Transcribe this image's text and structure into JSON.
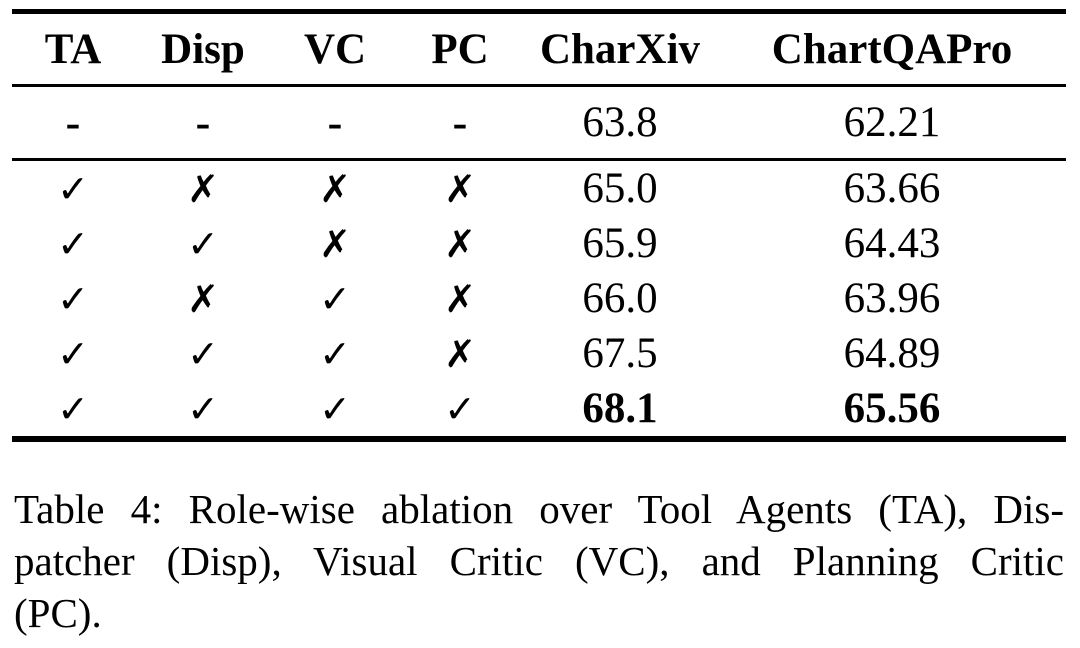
{
  "page": {
    "background_color": "#ffffff",
    "text_color": "#000000"
  },
  "table": {
    "columns": [
      {
        "label": "TA"
      },
      {
        "label": "Disp"
      },
      {
        "label": "VC"
      },
      {
        "label": "PC"
      },
      {
        "label": "CharXiv"
      },
      {
        "label": "ChartQAPro"
      }
    ],
    "glyphs": {
      "check": "✓",
      "cross": "✗",
      "none": "-"
    },
    "rows": [
      {
        "section": "baseline",
        "marks": [
          "none",
          "none",
          "none",
          "none"
        ],
        "scores": [
          "63.8",
          "62.21"
        ],
        "bold": false
      },
      {
        "section": "ablation",
        "marks": [
          "check",
          "cross",
          "cross",
          "cross"
        ],
        "scores": [
          "65.0",
          "63.66"
        ],
        "bold": false
      },
      {
        "section": "ablation",
        "marks": [
          "check",
          "check",
          "cross",
          "cross"
        ],
        "scores": [
          "65.9",
          "64.43"
        ],
        "bold": false
      },
      {
        "section": "ablation",
        "marks": [
          "check",
          "cross",
          "check",
          "cross"
        ],
        "scores": [
          "66.0",
          "63.96"
        ],
        "bold": false
      },
      {
        "section": "ablation",
        "marks": [
          "check",
          "check",
          "check",
          "cross"
        ],
        "scores": [
          "67.5",
          "64.89"
        ],
        "bold": false
      },
      {
        "section": "ablation",
        "marks": [
          "check",
          "check",
          "check",
          "check"
        ],
        "scores": [
          "68.1",
          "65.56"
        ],
        "bold": true
      }
    ]
  },
  "caption": {
    "lines": [
      "Table 4: Role-wise ablation over Tool Agents (TA), Dis-",
      "patcher (Disp), Visual Critic (VC), and Planning Critic",
      "(PC)."
    ]
  }
}
